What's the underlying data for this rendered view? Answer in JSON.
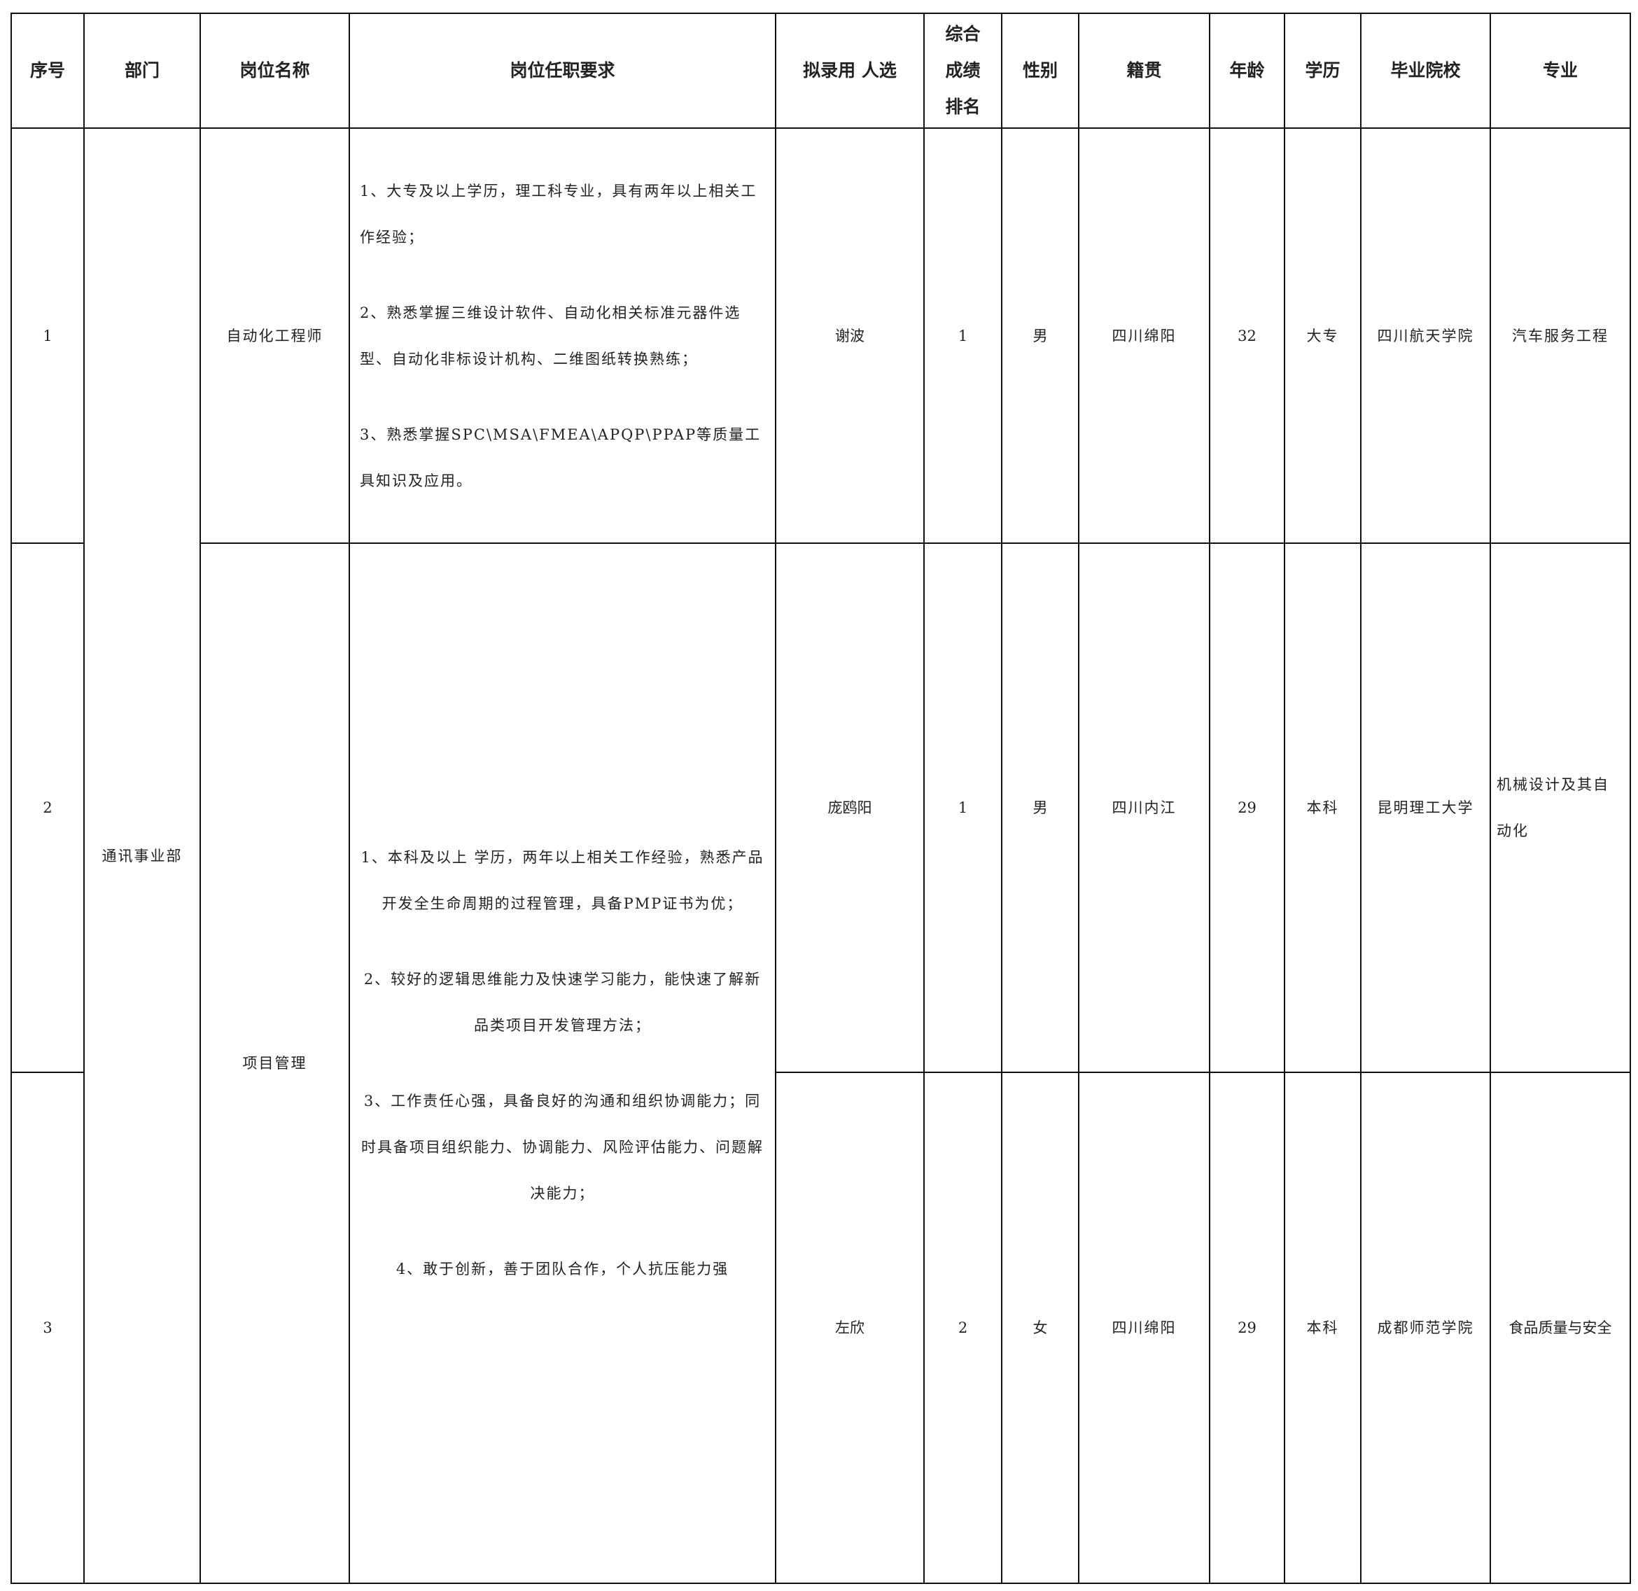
{
  "headers": {
    "seq": "序号",
    "dept": "部门",
    "position": "岗位名称",
    "requirements": "岗位任职要求",
    "candidate": "拟录用 人选",
    "rank": "综合成绩排名",
    "gender": "性别",
    "origin": "籍贯",
    "age": "年龄",
    "education": "学历",
    "school": "毕业院校",
    "major": "专业"
  },
  "department": "通讯事业部",
  "positions": [
    {
      "name": "自动化工程师",
      "requirements": [
        "1、大专及以上学历，理工科专业，具有两年以上相关工作经验；",
        "2、熟悉掌握三维设计软件、自动化相关标准元器件选型、自动化非标设计机构、二维图纸转换熟练；",
        "3、熟悉掌握SPC\\MSA\\FMEA\\APQP\\PPAP等质量工具知识及应用。"
      ]
    },
    {
      "name": "项目管理",
      "requirements": [
        "1、本科及以上 学历，两年以上相关工作经验，熟悉产品开发全生命周期的过程管理，具备PMP证书为优；",
        "2、较好的逻辑思维能力及快速学习能力，能快速了解新品类项目开发管理方法；",
        "3、工作责任心强，具备良好的沟通和组织协调能力；同时具备项目组织能力、协调能力、风险评估能力、问题解决能力；",
        "4、敢于创新，善于团队合作，个人抗压能力强"
      ]
    }
  ],
  "rows": [
    {
      "seq": "1",
      "candidate": "谢波",
      "rank": "1",
      "gender": "男",
      "origin": "四川绵阳",
      "age": "32",
      "education": "大专",
      "school": "四川航天学院",
      "major": "汽车服务工程"
    },
    {
      "seq": "2",
      "candidate": "庞鸥阳",
      "rank": "1",
      "gender": "男",
      "origin": "四川内江",
      "age": "29",
      "education": "本科",
      "school": "昆明理工大学",
      "major": "机械设计及其自动化"
    },
    {
      "seq": "3",
      "candidate": "左欣",
      "rank": "2",
      "gender": "女",
      "origin": "四川绵阳",
      "age": "29",
      "education": "本科",
      "school": "成都师范学院",
      "major": "食品质量与安全"
    }
  ]
}
